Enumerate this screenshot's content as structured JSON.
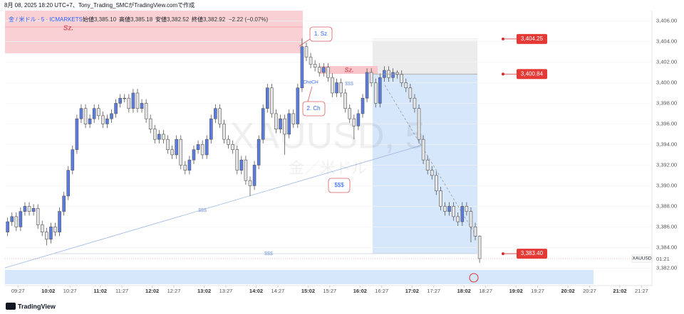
{
  "header": "8月 08, 2025 18:20 UTC+7、Tony_Trading_SMCがTradingView.comで作成",
  "legend": {
    "symbol": "金 / 米ドル · 5 · ICMARKETS",
    "open_label": "始値",
    "open": "3,385.10",
    "high_label": "高値",
    "high": "3,385.18",
    "low_label": "安値",
    "low": "3,382.52",
    "close_label": "終値",
    "close": "3,382.92",
    "change": "−2.22 (−0.07%)"
  },
  "watermark": {
    "symbol": "XAUUSD, 5",
    "name": "金／米ドル"
  },
  "brand": "TradingView",
  "chart_data": {
    "type": "candlestick",
    "x": [
      "09:15",
      "09:20",
      "09:25",
      "09:30",
      "09:35",
      "09:40",
      "09:45",
      "09:50",
      "09:55",
      "10:00",
      "10:05",
      "10:10",
      "10:15",
      "10:20",
      "10:25",
      "10:30",
      "10:35",
      "10:40",
      "10:45",
      "10:50",
      "10:55",
      "11:00",
      "11:05",
      "11:10",
      "11:15",
      "11:20",
      "11:25",
      "11:30",
      "11:35",
      "11:40",
      "11:45",
      "11:50",
      "11:55",
      "12:00",
      "12:05",
      "12:10",
      "12:15",
      "12:20",
      "12:25",
      "12:30",
      "12:35",
      "12:40",
      "12:45",
      "12:50",
      "12:55",
      "13:00",
      "13:05",
      "13:10",
      "13:15",
      "13:20",
      "13:25",
      "13:30",
      "13:35",
      "13:40",
      "13:45",
      "13:50",
      "13:55",
      "14:00",
      "14:05",
      "14:10",
      "14:15",
      "14:20",
      "14:25",
      "14:30",
      "14:35",
      "14:40",
      "14:45",
      "14:50",
      "14:55",
      "15:00",
      "15:05",
      "15:10",
      "15:15",
      "15:20",
      "15:25",
      "15:30",
      "15:35",
      "15:40",
      "15:45",
      "15:50",
      "15:55",
      "16:00",
      "16:05",
      "16:10",
      "16:15",
      "16:20",
      "16:25",
      "16:30",
      "16:35",
      "16:40",
      "16:45",
      "16:50",
      "16:55",
      "17:00",
      "17:05",
      "17:10",
      "17:15",
      "17:20",
      "17:25",
      "17:30",
      "17:35",
      "17:40",
      "17:45",
      "17:50",
      "17:55",
      "18:00",
      "18:05",
      "18:10",
      "18:15",
      "18:20"
    ],
    "open": [
      3385.5,
      3386.5,
      3387.0,
      3386.0,
      3387.5,
      3388.0,
      3387.5,
      3387.8,
      3386.2,
      3385.5,
      3384.8,
      3386.0,
      3385.5,
      3387.5,
      3389.0,
      3391.5,
      3393.5,
      3396.5,
      3397.5,
      3396.0,
      3396.5,
      3397.5,
      3396.8,
      3396.0,
      3396.5,
      3397.0,
      3398.0,
      3398.5,
      3398.5,
      3397.5,
      3399.0,
      3397.5,
      3398.0,
      3396.5,
      3395.5,
      3394.5,
      3395.0,
      3394.5,
      3393.5,
      3393.0,
      3394.5,
      3392.0,
      3391.5,
      3392.5,
      3393.5,
      3394.0,
      3393.0,
      3394.5,
      3396.5,
      3397.5,
      3396.0,
      3394.5,
      3394.0,
      3393.5,
      3391.5,
      3392.5,
      3390.5,
      3390.0,
      3392.0,
      3394.5,
      3397.5,
      3399.5,
      3397.0,
      3395.5,
      3396.5,
      3395.0,
      3397.0,
      3396.0,
      3399.5,
      3403.5,
      3402.5,
      3401.8,
      3401.5,
      3401.0,
      3401.5,
      3400.5,
      3399.0,
      3400.0,
      3399.0,
      3397.5,
      3396.5,
      3395.8,
      3397.0,
      3398.5,
      3401.0,
      3400.0,
      3398.0,
      3400.5,
      3401.2,
      3400.5,
      3401.0,
      3400.8,
      3400.0,
      3399.5,
      3398.5,
      3397.5,
      3394.5,
      3392.5,
      3391.5,
      3391.0,
      3389.5,
      3388.0,
      3387.5,
      3388.0,
      3387.0,
      3386.5,
      3388.0,
      3387.5,
      3386.0,
      3385.1
    ],
    "high": [
      3386.9,
      3387.4,
      3387.4,
      3387.9,
      3388.4,
      3388.4,
      3388.2,
      3388.2,
      3386.6,
      3385.9,
      3386.4,
      3386.4,
      3387.9,
      3389.4,
      3391.9,
      3393.9,
      3396.9,
      3397.9,
      3397.9,
      3396.9,
      3397.9,
      3397.9,
      3397.2,
      3396.9,
      3397.4,
      3398.4,
      3398.9,
      3398.9,
      3398.9,
      3399.4,
      3399.4,
      3398.4,
      3398.4,
      3396.9,
      3395.9,
      3395.4,
      3395.4,
      3394.9,
      3393.9,
      3394.9,
      3394.9,
      3392.4,
      3392.9,
      3393.9,
      3394.4,
      3394.4,
      3394.9,
      3396.9,
      3397.9,
      3397.9,
      3396.4,
      3394.9,
      3394.4,
      3393.9,
      3392.9,
      3392.9,
      3390.9,
      3392.4,
      3394.9,
      3397.9,
      3399.9,
      3399.9,
      3397.4,
      3396.9,
      3396.9,
      3397.4,
      3397.4,
      3399.9,
      3404.3,
      3403.9,
      3402.9,
      3402.2,
      3401.9,
      3401.9,
      3401.9,
      3400.9,
      3400.4,
      3400.4,
      3399.4,
      3397.9,
      3396.9,
      3397.4,
      3398.9,
      3401.4,
      3401.4,
      3400.4,
      3400.9,
      3401.6,
      3401.6,
      3401.4,
      3401.2,
      3401.2,
      3400.4,
      3399.9,
      3398.9,
      3397.9,
      3394.9,
      3392.9,
      3391.9,
      3391.4,
      3389.9,
      3388.4,
      3388.4,
      3388.4,
      3387.4,
      3388.4,
      3388.4,
      3387.9,
      3386.4,
      3385.18
    ],
    "low": [
      3385.1,
      3386.1,
      3385.6,
      3385.6,
      3387.1,
      3387.1,
      3387.1,
      3385.8,
      3385.1,
      3384.2,
      3384.4,
      3385.1,
      3385.1,
      3387.1,
      3388.6,
      3391.1,
      3393.1,
      3396.1,
      3395.6,
      3395.6,
      3396.1,
      3396.4,
      3395.6,
      3395.6,
      3396.1,
      3396.6,
      3397.6,
      3398.1,
      3397.1,
      3397.1,
      3397.1,
      3397.1,
      3396.1,
      3395.1,
      3394.1,
      3394.1,
      3394.1,
      3393.1,
      3392.6,
      3392.6,
      3391.6,
      3391.1,
      3391.1,
      3392.1,
      3393.1,
      3392.6,
      3392.6,
      3394.1,
      3396.1,
      3395.6,
      3394.1,
      3393.6,
      3393.1,
      3391.1,
      3391.1,
      3390.1,
      3389.0,
      3389.6,
      3391.6,
      3394.1,
      3397.1,
      3396.6,
      3395.1,
      3395.1,
      3393.0,
      3394.6,
      3395.6,
      3395.6,
      3399.1,
      3402.1,
      3401.4,
      3401.1,
      3400.6,
      3400.6,
      3400.1,
      3398.6,
      3398.6,
      3398.6,
      3397.1,
      3396.1,
      3394.5,
      3395.4,
      3396.6,
      3398.1,
      3399.6,
      3397.6,
      3397.6,
      3400.1,
      3400.1,
      3400.1,
      3400.4,
      3399.6,
      3399.1,
      3398.1,
      3397.1,
      3394.1,
      3392.1,
      3391.1,
      3390.6,
      3389.1,
      3387.6,
      3387.1,
      3387.1,
      3386.6,
      3386.1,
      3386.1,
      3387.1,
      3384.5,
      3384.7,
      3382.52
    ],
    "close": [
      3386.5,
      3387.0,
      3386.0,
      3387.5,
      3388.0,
      3387.5,
      3387.8,
      3386.2,
      3385.5,
      3384.8,
      3386.0,
      3385.5,
      3387.5,
      3389.0,
      3391.5,
      3393.5,
      3396.5,
      3397.5,
      3396.0,
      3396.5,
      3397.5,
      3396.8,
      3396.0,
      3396.5,
      3397.0,
      3398.0,
      3398.5,
      3398.5,
      3397.5,
      3399.0,
      3397.5,
      3398.0,
      3396.5,
      3395.5,
      3394.5,
      3395.0,
      3394.5,
      3393.5,
      3393.0,
      3394.5,
      3392.0,
      3391.5,
      3392.5,
      3393.5,
      3394.0,
      3393.0,
      3394.5,
      3396.5,
      3397.5,
      3396.0,
      3394.5,
      3394.0,
      3393.5,
      3391.5,
      3392.5,
      3390.5,
      3390.0,
      3392.0,
      3394.5,
      3397.5,
      3399.5,
      3397.0,
      3395.5,
      3396.5,
      3395.0,
      3397.0,
      3396.0,
      3399.5,
      3403.5,
      3402.5,
      3401.8,
      3401.5,
      3401.0,
      3401.5,
      3400.5,
      3399.0,
      3400.0,
      3399.0,
      3397.5,
      3396.5,
      3395.8,
      3397.0,
      3398.5,
      3401.0,
      3400.0,
      3398.0,
      3400.5,
      3401.2,
      3400.5,
      3401.0,
      3400.8,
      3400.0,
      3399.5,
      3398.5,
      3397.5,
      3394.5,
      3392.5,
      3391.5,
      3391.0,
      3389.5,
      3388.0,
      3387.5,
      3388.0,
      3387.0,
      3386.5,
      3388.0,
      3387.5,
      3386.0,
      3385.1,
      3382.92
    ],
    "up_color": "#5a7ce0",
    "down_color": "#e6e6e6",
    "wick_color": "#555555",
    "xlim": [
      "09:12",
      "21:39"
    ],
    "xticks": [
      "09:27",
      "10:02",
      "10:27",
      "11:02",
      "11:27",
      "12:02",
      "12:27",
      "13:02",
      "13:27",
      "14:02",
      "14:27",
      "15:02",
      "15:27",
      "16:02",
      "16:27",
      "17:02",
      "17:27",
      "18:02",
      "18:27",
      "19:02",
      "19:27",
      "20:02",
      "20:27",
      "21:02",
      "21:27"
    ],
    "ylim": [
      3380.3,
      3407.0
    ],
    "yticks": [
      {
        "value": 3382,
        "label": "3,382.00"
      },
      {
        "value": 3384,
        "label": "3,384.00"
      },
      {
        "value": 3386,
        "label": "3,386.00"
      },
      {
        "value": 3388,
        "label": "3,388.00"
      },
      {
        "value": 3390,
        "label": "3,390.00"
      },
      {
        "value": 3392,
        "label": "3,392.00"
      },
      {
        "value": 3394,
        "label": "3,394.00"
      },
      {
        "value": 3396,
        "label": "3,396.00"
      },
      {
        "value": 3398,
        "label": "3,398.00"
      },
      {
        "value": 3400,
        "label": "3,400.00"
      },
      {
        "value": 3402,
        "label": "3,402.00"
      },
      {
        "value": 3404,
        "label": "3,404.00"
      },
      {
        "value": 3406,
        "label": "3,406.00"
      }
    ],
    "price_levels": [
      {
        "value": 3404.25,
        "label": "3,404.25"
      },
      {
        "value": 3400.84,
        "label": "3,400.84"
      },
      {
        "value": 3383.4,
        "label": "3,383.40"
      }
    ],
    "symbol_tag": "XAUUSD",
    "countdown": "01:21",
    "annotations": {
      "zone": "Sz.",
      "callout_1": "1. Sz",
      "callout_2": "2. Ch",
      "zone_2": "Sz.",
      "choch": "ChoCH",
      "liquidity": [
        "$$$",
        "$$$",
        "$$$",
        "$$$"
      ]
    }
  }
}
